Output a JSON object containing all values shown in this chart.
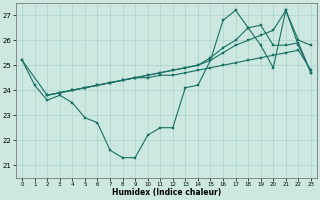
{
  "xlabel": "Humidex (Indice chaleur)",
  "xlim": [
    -0.5,
    23.5
  ],
  "ylim": [
    20.5,
    27.5
  ],
  "yticks": [
    21,
    22,
    23,
    24,
    25,
    26,
    27
  ],
  "xticks": [
    0,
    1,
    2,
    3,
    4,
    5,
    6,
    7,
    8,
    9,
    10,
    11,
    12,
    13,
    14,
    15,
    16,
    17,
    18,
    19,
    20,
    21,
    22,
    23
  ],
  "bg_color": "#cce8e0",
  "grid_color": "#aad4cc",
  "line_color": "#1a6e64",
  "series": [
    {
      "x": [
        0,
        1,
        2,
        3,
        4,
        5,
        6,
        7,
        8,
        9,
        10,
        11,
        12,
        13,
        14,
        15,
        16,
        17,
        18,
        19,
        20,
        21,
        22,
        23
      ],
      "y": [
        25.2,
        24.2,
        23.6,
        23.8,
        23.5,
        22.9,
        22.7,
        21.6,
        21.3,
        21.3,
        22.2,
        22.5,
        22.5,
        24.1,
        24.2,
        25.2,
        26.8,
        27.2,
        26.5,
        25.8,
        24.9,
        27.2,
        25.8,
        24.7
      ]
    },
    {
      "x": [
        2,
        3,
        4,
        5,
        6,
        7,
        8,
        9,
        10,
        11,
        12,
        13,
        14,
        15,
        16,
        17,
        18,
        19,
        20,
        21,
        22,
        23
      ],
      "y": [
        23.8,
        23.9,
        24.0,
        24.1,
        24.2,
        24.3,
        24.4,
        24.5,
        24.6,
        24.7,
        24.8,
        24.9,
        25.0,
        25.3,
        25.7,
        26.0,
        26.5,
        26.6,
        25.8,
        25.8,
        25.9,
        24.7
      ]
    },
    {
      "x": [
        0,
        2,
        3,
        4,
        5,
        6,
        7,
        8,
        9,
        10,
        11,
        12,
        13,
        14,
        15,
        16,
        17,
        18,
        19,
        20,
        21,
        22,
        23
      ],
      "y": [
        25.2,
        23.8,
        23.9,
        24.0,
        24.1,
        24.2,
        24.3,
        24.4,
        24.5,
        24.6,
        24.7,
        24.8,
        24.9,
        25.0,
        25.2,
        25.5,
        25.8,
        26.0,
        26.2,
        26.4,
        27.2,
        26.0,
        25.8
      ]
    },
    {
      "x": [
        2,
        3,
        4,
        5,
        6,
        7,
        8,
        9,
        10,
        11,
        12,
        13,
        14,
        15,
        16,
        17,
        18,
        19,
        20,
        21,
        22,
        23
      ],
      "y": [
        23.8,
        23.9,
        24.0,
        24.1,
        24.2,
        24.3,
        24.4,
        24.5,
        24.5,
        24.6,
        24.6,
        24.7,
        24.8,
        24.9,
        25.0,
        25.1,
        25.2,
        25.3,
        25.4,
        25.5,
        25.6,
        24.8
      ]
    }
  ]
}
